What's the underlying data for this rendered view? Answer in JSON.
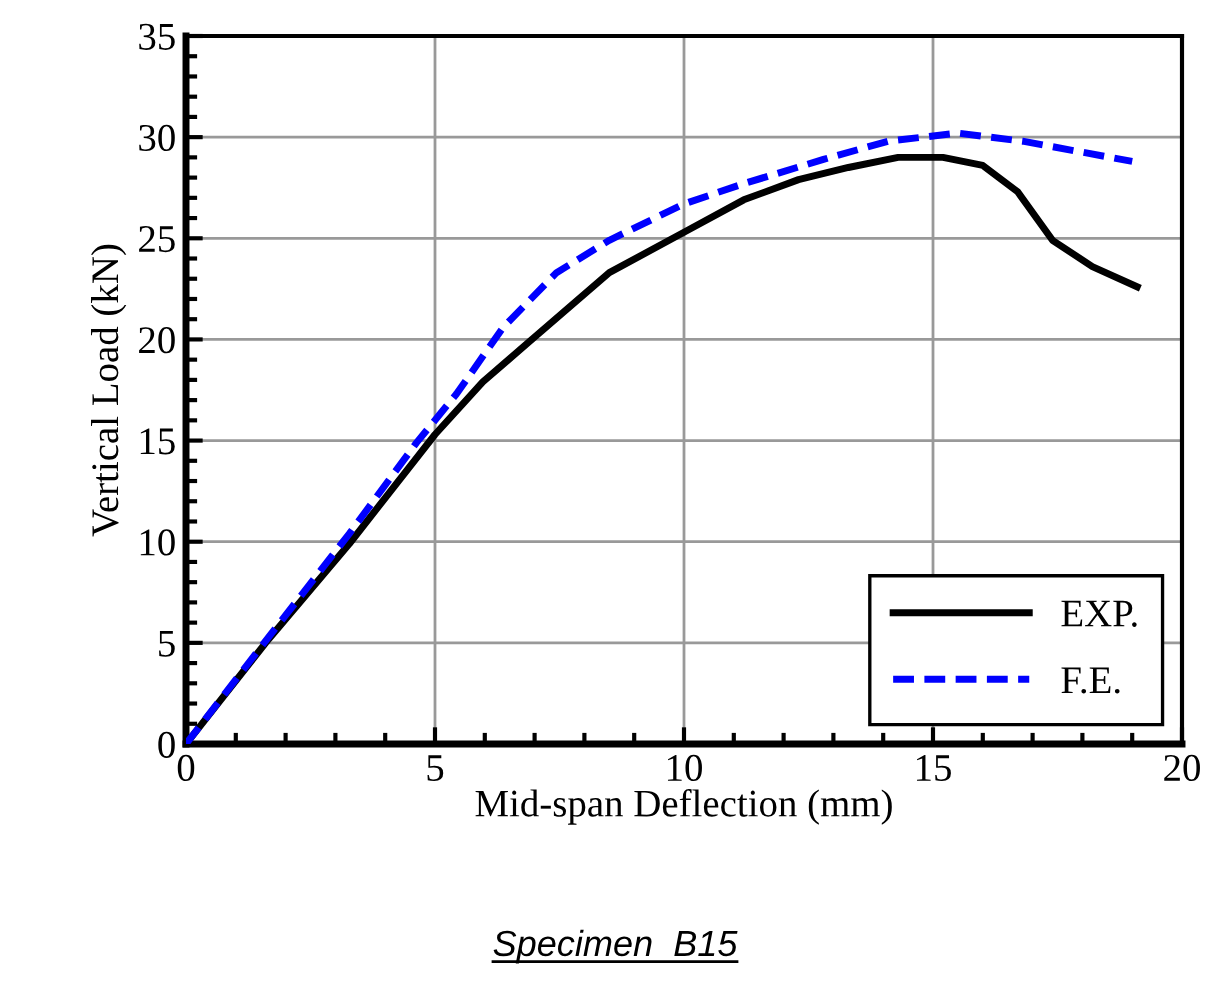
{
  "chart_data": {
    "type": "line",
    "xlabel": "Mid-span Deflection (mm)",
    "ylabel": "Vertical Load (kN)",
    "annotations": [
      "Specimen  B15"
    ],
    "series": [
      {
        "name": "EXP.",
        "color": "#000000",
        "line_style": "solid",
        "x": [
          0,
          1.6,
          3.28,
          5,
          5.96,
          6.9,
          8.5,
          10,
          11.2,
          12.3,
          13.3,
          14.3,
          15.2,
          16,
          16.7,
          17.4,
          18.2,
          19.1
        ],
        "values": [
          0,
          5,
          9.9,
          15.3,
          17.9,
          19.9,
          23.3,
          25.3,
          26.9,
          27.9,
          28.5,
          29,
          29,
          28.6,
          27.3,
          24.9,
          23.6,
          22.6
        ]
      },
      {
        "name": "F.E.",
        "color": "#0000ff",
        "line_style": "dashed",
        "x": [
          0,
          1.6,
          3.28,
          4.63,
          5.43,
          6.37,
          7.44,
          8.5,
          10,
          11.2,
          12.8,
          14.1,
          15.5,
          16.8,
          19
        ],
        "values": [
          0,
          5.1,
          10.4,
          14.9,
          17.3,
          20.6,
          23.3,
          24.9,
          26.7,
          27.7,
          28.9,
          29.8,
          30.2,
          29.8,
          28.8
        ]
      }
    ],
    "xlim": [
      0,
      20
    ],
    "ylim": [
      0,
      35
    ],
    "xticks": [
      0,
      5,
      10,
      15,
      20
    ],
    "yticks": [
      0,
      5,
      10,
      15,
      20,
      25,
      30,
      35
    ],
    "grid": true,
    "legend": "bottom right"
  }
}
